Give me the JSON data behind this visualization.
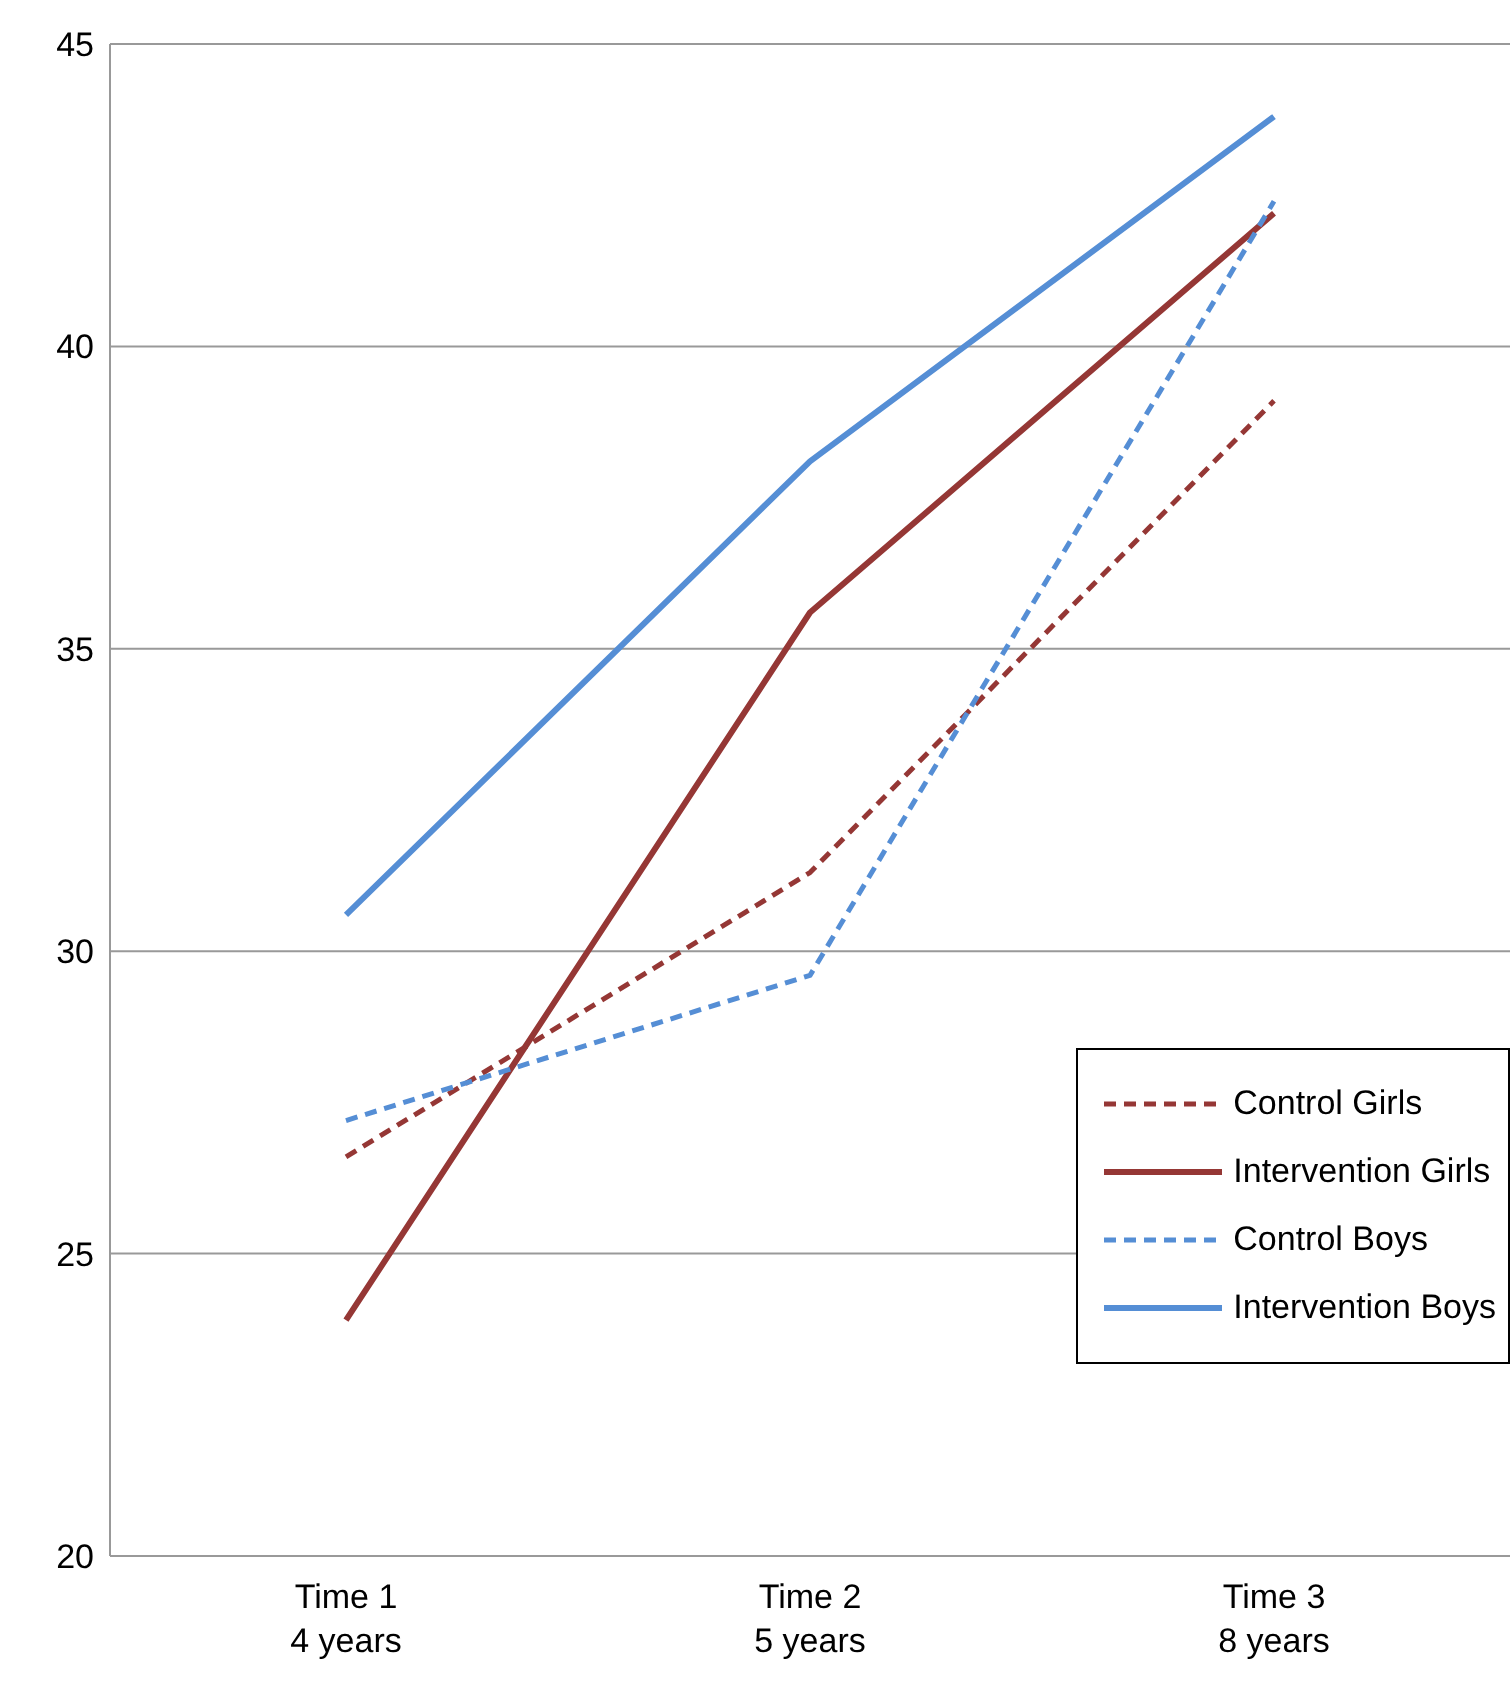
{
  "chart_data": {
    "type": "line",
    "categories": [
      "Time 1\n4 years",
      "Time 2\n5 years",
      "Time 3\n8 years"
    ],
    "series": [
      {
        "name": "Control Girls",
        "color": "#953735",
        "line_style": "dashed",
        "values": [
          26.6,
          31.3,
          39.1
        ]
      },
      {
        "name": "Intervention Girls",
        "color": "#953735",
        "line_style": "solid",
        "values": [
          23.9,
          35.6,
          42.2
        ]
      },
      {
        "name": "Control Boys",
        "color": "#558ed5",
        "line_style": "dashed",
        "values": [
          27.2,
          29.6,
          42.4
        ]
      },
      {
        "name": "Intervention Boys",
        "color": "#558ed5",
        "line_style": "solid",
        "values": [
          30.6,
          38.1,
          43.8
        ]
      }
    ],
    "ylim": [
      20,
      45
    ],
    "yticks": [
      20,
      25,
      30,
      35,
      40,
      45
    ],
    "grid": "y",
    "legend": "bottom right",
    "marker": "none"
  }
}
